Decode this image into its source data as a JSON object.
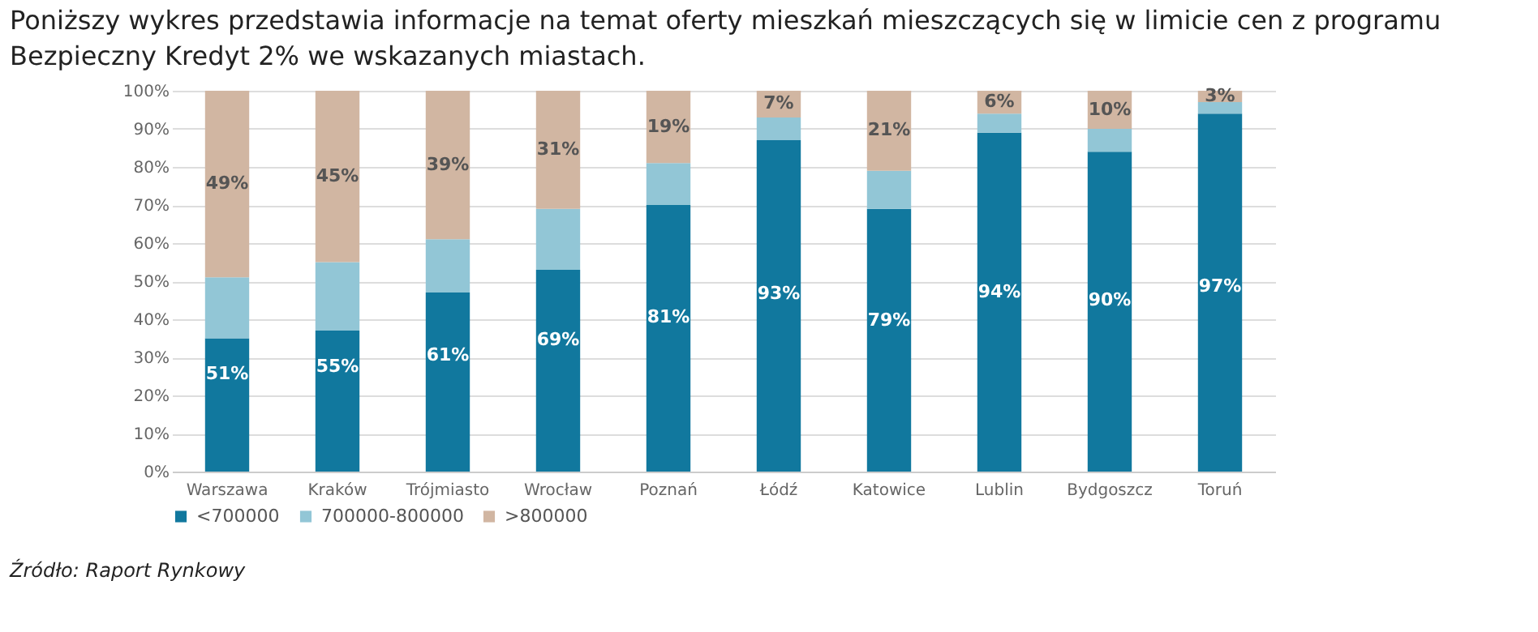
{
  "chart_data": {
    "type": "bar",
    "title": "Poniższy wykres przedstawia informacje na temat oferty mieszkań mieszczących się w limicie cen z programu Bezpieczny Kredyt 2% we wskazanych miastach.",
    "annotations": [
      "Źródło: Raport Rynkowy",
      "51%",
      "55%",
      "61%",
      "69%",
      "81%",
      "93%",
      "79%",
      "94%",
      "90%",
      "97%"
    ],
    "categories": [
      "Warszawa",
      "Kraków",
      "Trójmiasto",
      "Wrocław",
      "Poznań",
      "Łódź",
      "Katowice",
      "Lublin",
      "Bydgoszcz",
      "Toruń"
    ],
    "stacked": true,
    "grid": "y",
    "legend": "bottom",
    "ylim": [
      0,
      100
    ],
    "yticks": [
      {
        "value": 0,
        "label": "0%"
      },
      {
        "value": 10,
        "label": "10%"
      },
      {
        "value": 20,
        "label": "20%"
      },
      {
        "value": 30,
        "label": "30%"
      },
      {
        "value": 40,
        "label": "40%"
      },
      {
        "value": 50,
        "label": "50%"
      },
      {
        "value": 60,
        "label": "60%"
      },
      {
        "value": 70,
        "label": "70%"
      },
      {
        "value": 80,
        "label": "80%"
      },
      {
        "value": 90,
        "label": "90%"
      },
      {
        "value": 100,
        "label": "100%"
      }
    ],
    "series": [
      {
        "name": "<700000",
        "color": "#11789e",
        "values": [
          35,
          37,
          47,
          53,
          70,
          87,
          69,
          89,
          84,
          94
        ]
      },
      {
        "name": "700000-800000",
        "color": "#92c6d6",
        "values": [
          16,
          18,
          14,
          16,
          11,
          6,
          10,
          5,
          6,
          3
        ]
      },
      {
        "name": ">800000",
        "color": "#d1b6a2",
        "values": [
          49,
          45,
          39,
          31,
          19,
          7,
          21,
          6,
          10,
          3
        ],
        "value_labels": [
          "49%",
          "45%",
          "39%",
          "31%",
          "19%",
          "7%",
          "21%",
          "6%",
          "10%",
          "3%"
        ]
      }
    ]
  }
}
